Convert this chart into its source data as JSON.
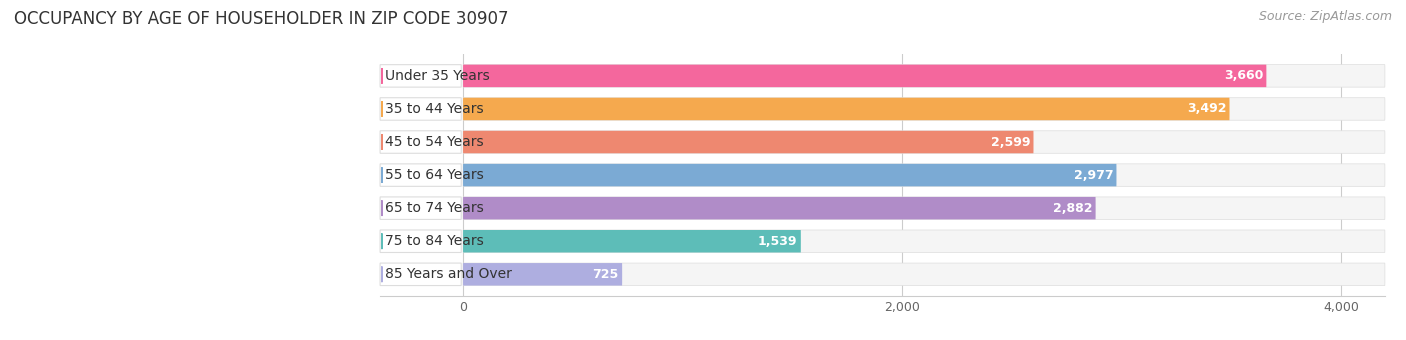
{
  "title": "OCCUPANCY BY AGE OF HOUSEHOLDER IN ZIP CODE 30907",
  "source": "Source: ZipAtlas.com",
  "categories": [
    "Under 35 Years",
    "35 to 44 Years",
    "45 to 54 Years",
    "55 to 64 Years",
    "65 to 74 Years",
    "75 to 84 Years",
    "85 Years and Over"
  ],
  "values": [
    3660,
    3492,
    2599,
    2977,
    2882,
    1539,
    725
  ],
  "bar_colors": [
    "#F4679D",
    "#F5A94E",
    "#EE8870",
    "#7BAAD4",
    "#B08CC8",
    "#5DBDB8",
    "#AEAEE0"
  ],
  "bar_bg_colors": [
    "#F5F5F5",
    "#F5F5F5",
    "#F5F5F5",
    "#F5F5F5",
    "#F5F5F5",
    "#F5F5F5",
    "#F5F5F5"
  ],
  "xlim_data_max": 4000,
  "xticks": [
    0,
    2000,
    4000
  ],
  "background_color": "#ffffff",
  "title_fontsize": 12,
  "source_fontsize": 9,
  "label_fontsize": 10,
  "value_fontsize": 9
}
